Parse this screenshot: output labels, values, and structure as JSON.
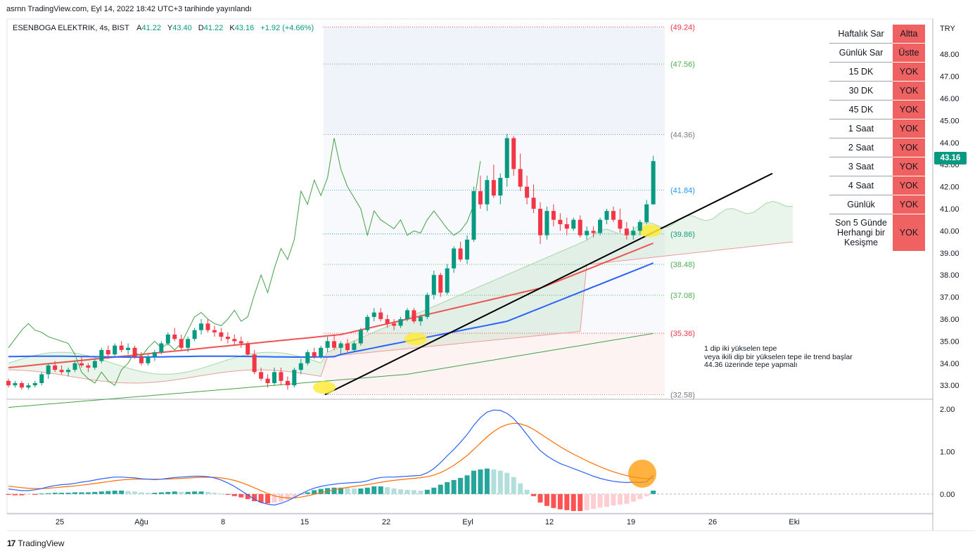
{
  "header": {
    "published_text": "asrnn TradingView.com, Eyl 14, 2022 18:42 UTC+3 tarihinde yayınlandı"
  },
  "ohlc": {
    "symbol": "ESENBOGA ELEKTRIK, 4s, BIST",
    "o_label": "A",
    "o": "41.22",
    "h_label": "Y",
    "h": "43.40",
    "l_label": "D",
    "l": "41.22",
    "c_label": "K",
    "c": "43.16",
    "change": "+1.92 (+4.66%)"
  },
  "currency": "TRY",
  "last_price": "43.16",
  "colors": {
    "up": "#089981",
    "down": "#f23645",
    "accent_table": "#f06262",
    "macd": "#2962ff",
    "signal": "#ff6d00"
  },
  "signal_table": [
    {
      "label": "Haftalık Sar",
      "value": "Altta"
    },
    {
      "label": "Günlük Sar",
      "value": "Üstte"
    },
    {
      "label": "15 DK",
      "value": "YOK"
    },
    {
      "label": "30 DK",
      "value": "YOK"
    },
    {
      "label": "45 DK",
      "value": "YOK"
    },
    {
      "label": "1 Saat",
      "value": "YOK"
    },
    {
      "label": "2 Saat",
      "value": "YOK"
    },
    {
      "label": "3 Saat",
      "value": "YOK"
    },
    {
      "label": "4 Saat",
      "value": "YOK"
    },
    {
      "label": "Günlük",
      "value": "YOK"
    },
    {
      "label": "Son 5 Günde Herhangi bir Kesişme",
      "value": "YOK"
    }
  ],
  "annotation": "1 dip iki yükselen tepe\nveya ikili dip bir yükselen tepe ile trend başlar\n44.36 üzerinde tepe yapmalı",
  "footer": {
    "logo": "17",
    "brand": "TradingView"
  },
  "chart_data": [
    {
      "type": "candlestick",
      "title": "ESENBOGA ELEKTRIK, 4s, BIST",
      "ylabel": "TRY",
      "ylim": [
        32.4,
        49.6
      ],
      "y_ticks": [
        "48.00",
        "47.00",
        "46.00",
        "45.00",
        "44.00",
        "43.00",
        "42.00",
        "41.00",
        "40.00",
        "39.00",
        "38.00",
        "37.00",
        "36.00",
        "35.00",
        "34.00",
        "33.00"
      ],
      "x_ticks": [
        {
          "label": "25",
          "x": 0
        },
        {
          "label": "Ağu",
          "x": 10
        },
        {
          "label": "8",
          "x": 20
        },
        {
          "label": "15",
          "x": 30
        },
        {
          "label": "22",
          "x": 40
        },
        {
          "label": "Eyl",
          "x": 50
        },
        {
          "label": "12",
          "x": 60
        },
        {
          "label": "19",
          "x": 70
        },
        {
          "label": "26",
          "x": 80
        },
        {
          "label": "Eki",
          "x": 90
        }
      ],
      "fib_levels": [
        {
          "label": "(49.24)",
          "value": 49.24,
          "color": "#f23645"
        },
        {
          "label": "(47.56)",
          "value": 47.56,
          "color": "#4caf50"
        },
        {
          "label": "(44.36)",
          "value": 44.36,
          "color": "#787b86"
        },
        {
          "label": "(41.84)",
          "value": 41.84,
          "color": "#2196f3"
        },
        {
          "label": "(39.86)",
          "value": 39.86,
          "color": "#089981"
        },
        {
          "label": "(38.48)",
          "value": 38.48,
          "color": "#4caf50"
        },
        {
          "label": "(37.08)",
          "value": 37.08,
          "color": "#4caf50"
        },
        {
          "label": "(35.36)",
          "value": 35.36,
          "color": "#f23645"
        },
        {
          "label": "(32.58)",
          "value": 32.58,
          "color": "#787b86"
        }
      ],
      "candles": [
        [
          33.2,
          33.3,
          32.9,
          33.0
        ],
        [
          33.0,
          33.2,
          32.9,
          33.1
        ],
        [
          33.1,
          33.2,
          32.8,
          32.9
        ],
        [
          32.9,
          33.1,
          32.8,
          33.0
        ],
        [
          33.0,
          33.2,
          32.9,
          33.1
        ],
        [
          33.1,
          33.6,
          33.0,
          33.5
        ],
        [
          33.5,
          34.0,
          33.3,
          33.9
        ],
        [
          33.9,
          34.1,
          33.6,
          33.7
        ],
        [
          33.7,
          33.9,
          33.5,
          33.6
        ],
        [
          33.6,
          33.8,
          33.4,
          33.7
        ],
        [
          33.7,
          34.1,
          33.6,
          34.0
        ],
        [
          34.0,
          34.3,
          33.8,
          33.9
        ],
        [
          33.9,
          34.0,
          33.6,
          33.8
        ],
        [
          33.8,
          34.2,
          33.7,
          34.1
        ],
        [
          34.1,
          34.7,
          34.0,
          34.6
        ],
        [
          34.6,
          34.8,
          34.2,
          34.4
        ],
        [
          34.4,
          34.9,
          34.3,
          34.8
        ],
        [
          34.8,
          35.0,
          34.5,
          34.6
        ],
        [
          34.6,
          34.9,
          34.4,
          34.7
        ],
        [
          34.7,
          34.8,
          34.2,
          34.3
        ],
        [
          34.3,
          34.5,
          33.9,
          34.0
        ],
        [
          34.0,
          34.4,
          33.9,
          34.3
        ],
        [
          34.3,
          34.6,
          34.1,
          34.5
        ],
        [
          34.5,
          35.0,
          34.4,
          34.9
        ],
        [
          34.9,
          35.4,
          34.8,
          35.3
        ],
        [
          35.3,
          35.6,
          35.0,
          35.1
        ],
        [
          35.1,
          35.3,
          34.6,
          34.7
        ],
        [
          34.7,
          35.2,
          34.5,
          35.1
        ],
        [
          35.1,
          35.6,
          35.0,
          35.5
        ],
        [
          35.5,
          36.0,
          35.3,
          35.8
        ],
        [
          35.8,
          36.0,
          35.4,
          35.5
        ],
        [
          35.5,
          35.7,
          35.2,
          35.4
        ],
        [
          35.4,
          35.6,
          35.0,
          35.2
        ],
        [
          35.2,
          35.4,
          34.9,
          35.1
        ],
        [
          35.1,
          35.3,
          34.8,
          35.0
        ],
        [
          35.0,
          35.2,
          34.7,
          34.9
        ],
        [
          34.9,
          35.0,
          34.3,
          34.4
        ],
        [
          34.4,
          34.6,
          33.5,
          33.6
        ],
        [
          33.6,
          33.8,
          33.2,
          33.3
        ],
        [
          33.3,
          33.5,
          32.9,
          33.1
        ],
        [
          33.1,
          33.8,
          33.0,
          33.6
        ],
        [
          33.6,
          33.8,
          33.0,
          33.2
        ],
        [
          33.2,
          33.4,
          32.8,
          33.0
        ],
        [
          33.0,
          33.8,
          32.9,
          33.7
        ],
        [
          33.7,
          34.2,
          33.5,
          34.0
        ],
        [
          34.0,
          34.6,
          33.9,
          34.5
        ],
        [
          34.5,
          34.7,
          34.2,
          34.3
        ],
        [
          34.3,
          34.8,
          34.2,
          34.7
        ],
        [
          34.7,
          35.2,
          34.5,
          35.0
        ],
        [
          35.0,
          35.3,
          34.6,
          34.7
        ],
        [
          34.7,
          35.0,
          34.4,
          34.9
        ],
        [
          34.9,
          35.1,
          34.5,
          34.6
        ],
        [
          34.6,
          35.0,
          34.5,
          34.9
        ],
        [
          34.9,
          35.6,
          34.8,
          35.5
        ],
        [
          35.5,
          36.2,
          35.4,
          36.1
        ],
        [
          36.1,
          36.5,
          35.9,
          36.3
        ],
        [
          36.3,
          36.5,
          35.9,
          36.0
        ],
        [
          36.0,
          36.2,
          35.6,
          35.8
        ],
        [
          35.8,
          36.0,
          35.5,
          35.7
        ],
        [
          35.7,
          36.1,
          35.6,
          36.0
        ],
        [
          36.0,
          36.5,
          35.9,
          36.4
        ],
        [
          36.4,
          36.5,
          35.8,
          35.9
        ],
        [
          35.9,
          36.2,
          35.7,
          36.1
        ],
        [
          36.1,
          37.2,
          36.0,
          37.1
        ],
        [
          37.1,
          38.2,
          36.9,
          38.0
        ],
        [
          38.0,
          38.1,
          37.0,
          37.2
        ],
        [
          37.2,
          38.5,
          37.1,
          38.3
        ],
        [
          38.3,
          39.3,
          38.1,
          39.2
        ],
        [
          39.2,
          39.5,
          38.6,
          38.7
        ],
        [
          38.7,
          39.8,
          38.5,
          39.6
        ],
        [
          39.6,
          42.0,
          39.5,
          41.8
        ],
        [
          41.8,
          42.5,
          41.0,
          41.2
        ],
        [
          41.2,
          42.5,
          40.9,
          42.3
        ],
        [
          42.3,
          43.0,
          41.5,
          41.6
        ],
        [
          41.6,
          42.6,
          41.2,
          42.4
        ],
        [
          42.4,
          44.4,
          42.0,
          44.2
        ],
        [
          44.2,
          44.3,
          42.5,
          42.8
        ],
        [
          42.8,
          43.5,
          41.8,
          42.0
        ],
        [
          42.0,
          42.5,
          41.2,
          41.5
        ],
        [
          41.5,
          42.1,
          40.8,
          41.0
        ],
        [
          41.0,
          41.3,
          39.4,
          39.8
        ],
        [
          39.8,
          41.1,
          39.6,
          40.9
        ],
        [
          40.9,
          41.2,
          40.2,
          40.5
        ],
        [
          40.5,
          40.8,
          40.0,
          40.3
        ],
        [
          40.3,
          40.6,
          39.8,
          40.1
        ],
        [
          40.1,
          40.6,
          40.0,
          40.5
        ],
        [
          40.5,
          40.7,
          39.7,
          39.8
        ],
        [
          39.8,
          40.2,
          39.6,
          40.0
        ],
        [
          40.0,
          40.2,
          39.7,
          39.9
        ],
        [
          39.9,
          40.6,
          39.8,
          40.5
        ],
        [
          40.5,
          41.0,
          40.3,
          40.9
        ],
        [
          40.9,
          41.1,
          40.4,
          40.5
        ],
        [
          40.5,
          41.0,
          39.9,
          40.1
        ],
        [
          40.1,
          40.4,
          39.6,
          39.8
        ],
        [
          39.8,
          40.2,
          39.6,
          40.0
        ],
        [
          40.0,
          40.5,
          39.8,
          40.4
        ],
        [
          40.4,
          41.4,
          40.3,
          41.2
        ],
        [
          41.2,
          43.4,
          41.2,
          43.16
        ]
      ],
      "baseline_ma": 34.1,
      "macd_pane": {
        "ylim": [
          -0.45,
          2.2
        ],
        "y_ticks": [
          "2.00",
          "1.00",
          "0.00"
        ],
        "histogram": [
          -0.02,
          -0.03,
          -0.03,
          -0.02,
          -0.02,
          0.01,
          0.02,
          0.03,
          0.03,
          0.03,
          0.04,
          0.04,
          0.04,
          0.05,
          0.06,
          0.07,
          0.08,
          0.08,
          0.07,
          0.06,
          0.04,
          0.03,
          0.03,
          0.04,
          0.05,
          0.06,
          0.05,
          0.05,
          0.06,
          0.06,
          0.05,
          0.03,
          0.01,
          -0.02,
          -0.05,
          -0.08,
          -0.12,
          -0.17,
          -0.2,
          -0.22,
          -0.2,
          -0.18,
          -0.14,
          -0.08,
          -0.02,
          0.04,
          0.09,
          0.12,
          0.14,
          0.15,
          0.15,
          0.14,
          0.13,
          0.13,
          0.15,
          0.18,
          0.18,
          0.16,
          0.13,
          0.11,
          0.1,
          0.09,
          0.08,
          0.1,
          0.15,
          0.22,
          0.28,
          0.33,
          0.38,
          0.44,
          0.55,
          0.58,
          0.6,
          0.58,
          0.55,
          0.5,
          0.4,
          0.25,
          0.1,
          -0.05,
          -0.2,
          -0.28,
          -0.33,
          -0.36,
          -0.38,
          -0.4,
          -0.4,
          -0.38,
          -0.35,
          -0.32,
          -0.3,
          -0.27,
          -0.25,
          -0.23,
          -0.18,
          -0.12,
          -0.05,
          0.08
        ]
      }
    }
  ]
}
